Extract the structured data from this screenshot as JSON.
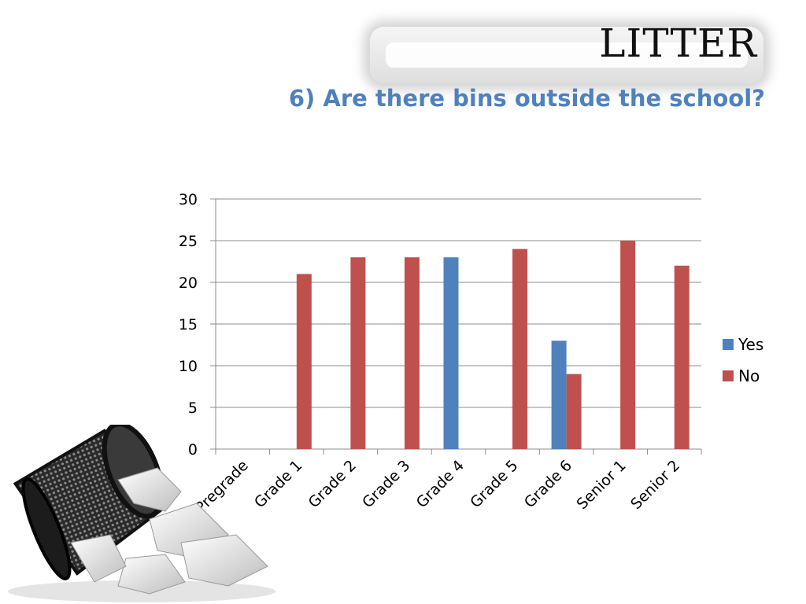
{
  "slide": {
    "title": "LITTER",
    "subtitle": "6) Are there bins outside the school?"
  },
  "colors": {
    "yes": "#4f81bd",
    "no": "#c0504d",
    "grid": "#8c8c8c",
    "axis_text": "#000000"
  },
  "chart_data": {
    "type": "bar",
    "title": "",
    "xlabel": "",
    "ylabel": "",
    "categories": [
      "Pregrade",
      "Grade 1",
      "Grade 2",
      "Grade 3",
      "Grade 4",
      "Grade 5",
      "Grade 6",
      "Senior 1",
      "Senior 2"
    ],
    "series": [
      {
        "name": "Yes",
        "values": [
          0,
          0,
          0,
          0,
          23,
          0,
          13,
          0,
          0
        ]
      },
      {
        "name": "No",
        "values": [
          0,
          21,
          23,
          23,
          0,
          24,
          9,
          25,
          22
        ]
      }
    ],
    "ylim": [
      0,
      30
    ],
    "yticks": [
      0,
      5,
      10,
      15,
      20,
      25,
      30
    ],
    "grid": true,
    "legend_position": "right"
  }
}
